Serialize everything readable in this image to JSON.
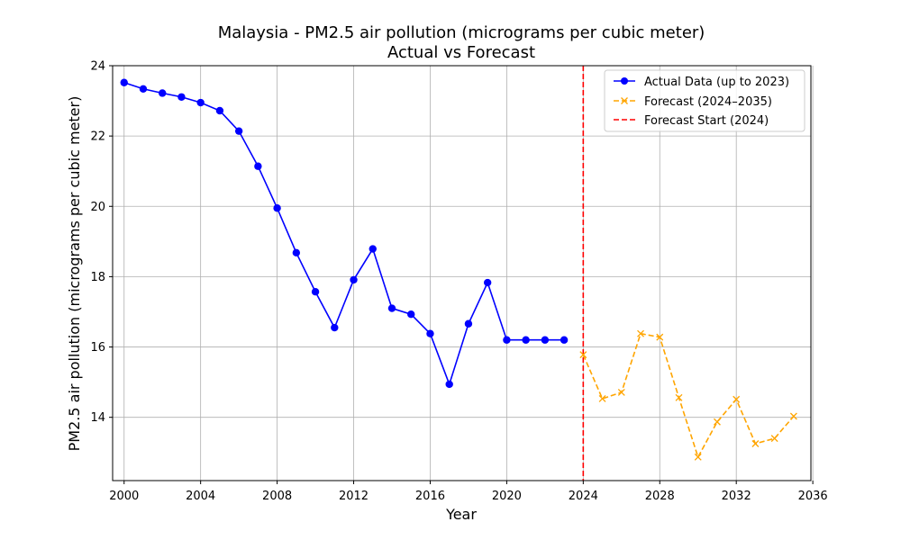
{
  "chart_data": {
    "type": "line",
    "title": "Malaysia - PM2.5 air pollution (micrograms per cubic meter)",
    "subtitle": "Actual vs Forecast",
    "xlabel": "Year",
    "ylabel": "PM2.5 air pollution (micrograms per cubic meter)",
    "xlim": [
      1999.4,
      2035.9
    ],
    "ylim": [
      12.2,
      24.0
    ],
    "xticks": [
      2000,
      2004,
      2008,
      2012,
      2016,
      2020,
      2024,
      2028,
      2032,
      2036
    ],
    "yticks": [
      14,
      16,
      18,
      20,
      22,
      24
    ],
    "grid": true,
    "legend_position": "top-right",
    "series": [
      {
        "name": "Actual Data (up to 2023)",
        "color": "#0000ff",
        "style": "solid",
        "marker": "circle",
        "x": [
          2000,
          2001,
          2002,
          2003,
          2004,
          2005,
          2006,
          2007,
          2008,
          2009,
          2010,
          2011,
          2012,
          2013,
          2014,
          2015,
          2016,
          2017,
          2018,
          2019,
          2020,
          2021,
          2022,
          2023
        ],
        "values": [
          23.52,
          23.34,
          23.22,
          23.11,
          22.95,
          22.72,
          22.14,
          21.14,
          19.95,
          18.68,
          17.57,
          16.55,
          17.91,
          18.79,
          17.1,
          16.93,
          16.38,
          14.94,
          16.66,
          17.83,
          16.2,
          16.2,
          16.2,
          16.2
        ]
      },
      {
        "name": "Forecast (2024–2035)",
        "color": "#ffa500",
        "style": "dashed",
        "marker": "x",
        "x": [
          2024,
          2025,
          2026,
          2027,
          2028,
          2029,
          2030,
          2031,
          2032,
          2033,
          2034,
          2035
        ],
        "values": [
          15.78,
          14.53,
          14.71,
          16.38,
          16.28,
          14.56,
          12.87,
          13.87,
          14.51,
          13.25,
          13.4,
          14.03
        ]
      }
    ],
    "vline": {
      "name": "Forecast Start (2024)",
      "x": 2024,
      "color": "#ff0000",
      "style": "dashed"
    }
  }
}
